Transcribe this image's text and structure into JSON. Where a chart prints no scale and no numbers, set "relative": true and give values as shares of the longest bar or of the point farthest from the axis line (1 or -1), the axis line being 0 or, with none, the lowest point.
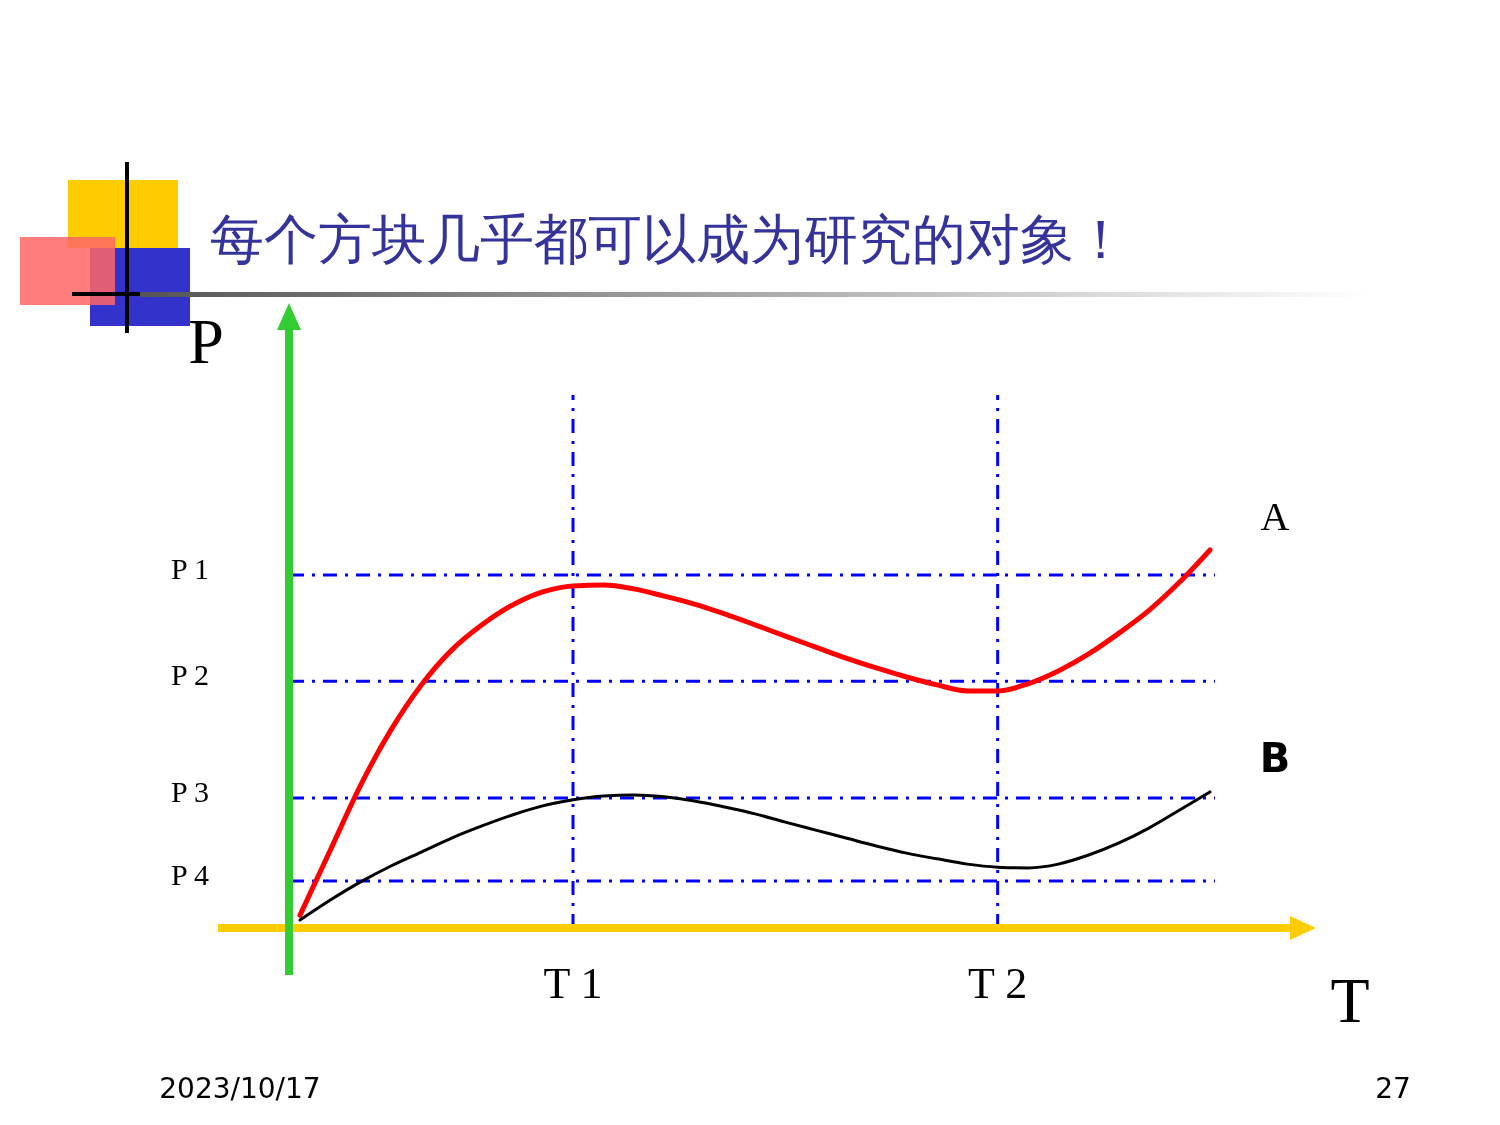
{
  "chart_data": {
    "type": "line",
    "title": "每个方块几乎都可以成为研究的对象！",
    "xlabel": "T",
    "ylabel": "P",
    "relative": true,
    "categories": [
      null,
      null,
      null,
      null,
      null,
      null,
      null,
      null,
      null,
      "T 1",
      null,
      null,
      null,
      null,
      null,
      null,
      null,
      null,
      null,
      null,
      null,
      null,
      null,
      "T 2",
      null,
      null,
      null,
      null,
      null,
      null,
      null
    ],
    "grid": "x",
    "legend": false,
    "line_style": "solid",
    "marker": "none",
    "series": [
      {
        "name": "A",
        "color": "#ff0000",
        "values": [
          0.034,
          0.206,
          0.378,
          0.524,
          0.643,
          0.735,
          0.802,
          0.854,
          0.889,
          0.905,
          0.907,
          0.897,
          0.878,
          0.857,
          0.831,
          0.802,
          0.772,
          0.743,
          0.714,
          0.688,
          0.664,
          0.643,
          0.627,
          0.627,
          0.646,
          0.68,
          0.725,
          0.78,
          0.841,
          0.915,
          1
        ]
      },
      {
        "name": "B",
        "color": "#000000",
        "values": [
          0.021,
          0.074,
          0.122,
          0.164,
          0.201,
          0.238,
          0.27,
          0.299,
          0.323,
          0.339,
          0.349,
          0.352,
          0.347,
          0.336,
          0.32,
          0.302,
          0.28,
          0.259,
          0.238,
          0.217,
          0.198,
          0.183,
          0.169,
          0.161,
          0.159,
          0.169,
          0.193,
          0.225,
          0.265,
          0.312,
          0.36
        ]
      }
    ],
    "ref_lines": [
      {
        "axis": "y",
        "value": 0.934,
        "label": "P 1",
        "color": "#0000ff",
        "line_style": "dashdot"
      },
      {
        "axis": "y",
        "value": 0.653,
        "label": "P 2",
        "color": "#0000ff",
        "line_style": "dashdot"
      },
      {
        "axis": "y",
        "value": 0.344,
        "label": "P 3",
        "color": "#0000ff",
        "line_style": "dashdot"
      },
      {
        "axis": "y",
        "value": 0.124,
        "label": "P 4",
        "color": "#0000ff",
        "line_style": "dashdot"
      }
    ],
    "annotations": [
      "2023/10/17",
      "27"
    ]
  }
}
